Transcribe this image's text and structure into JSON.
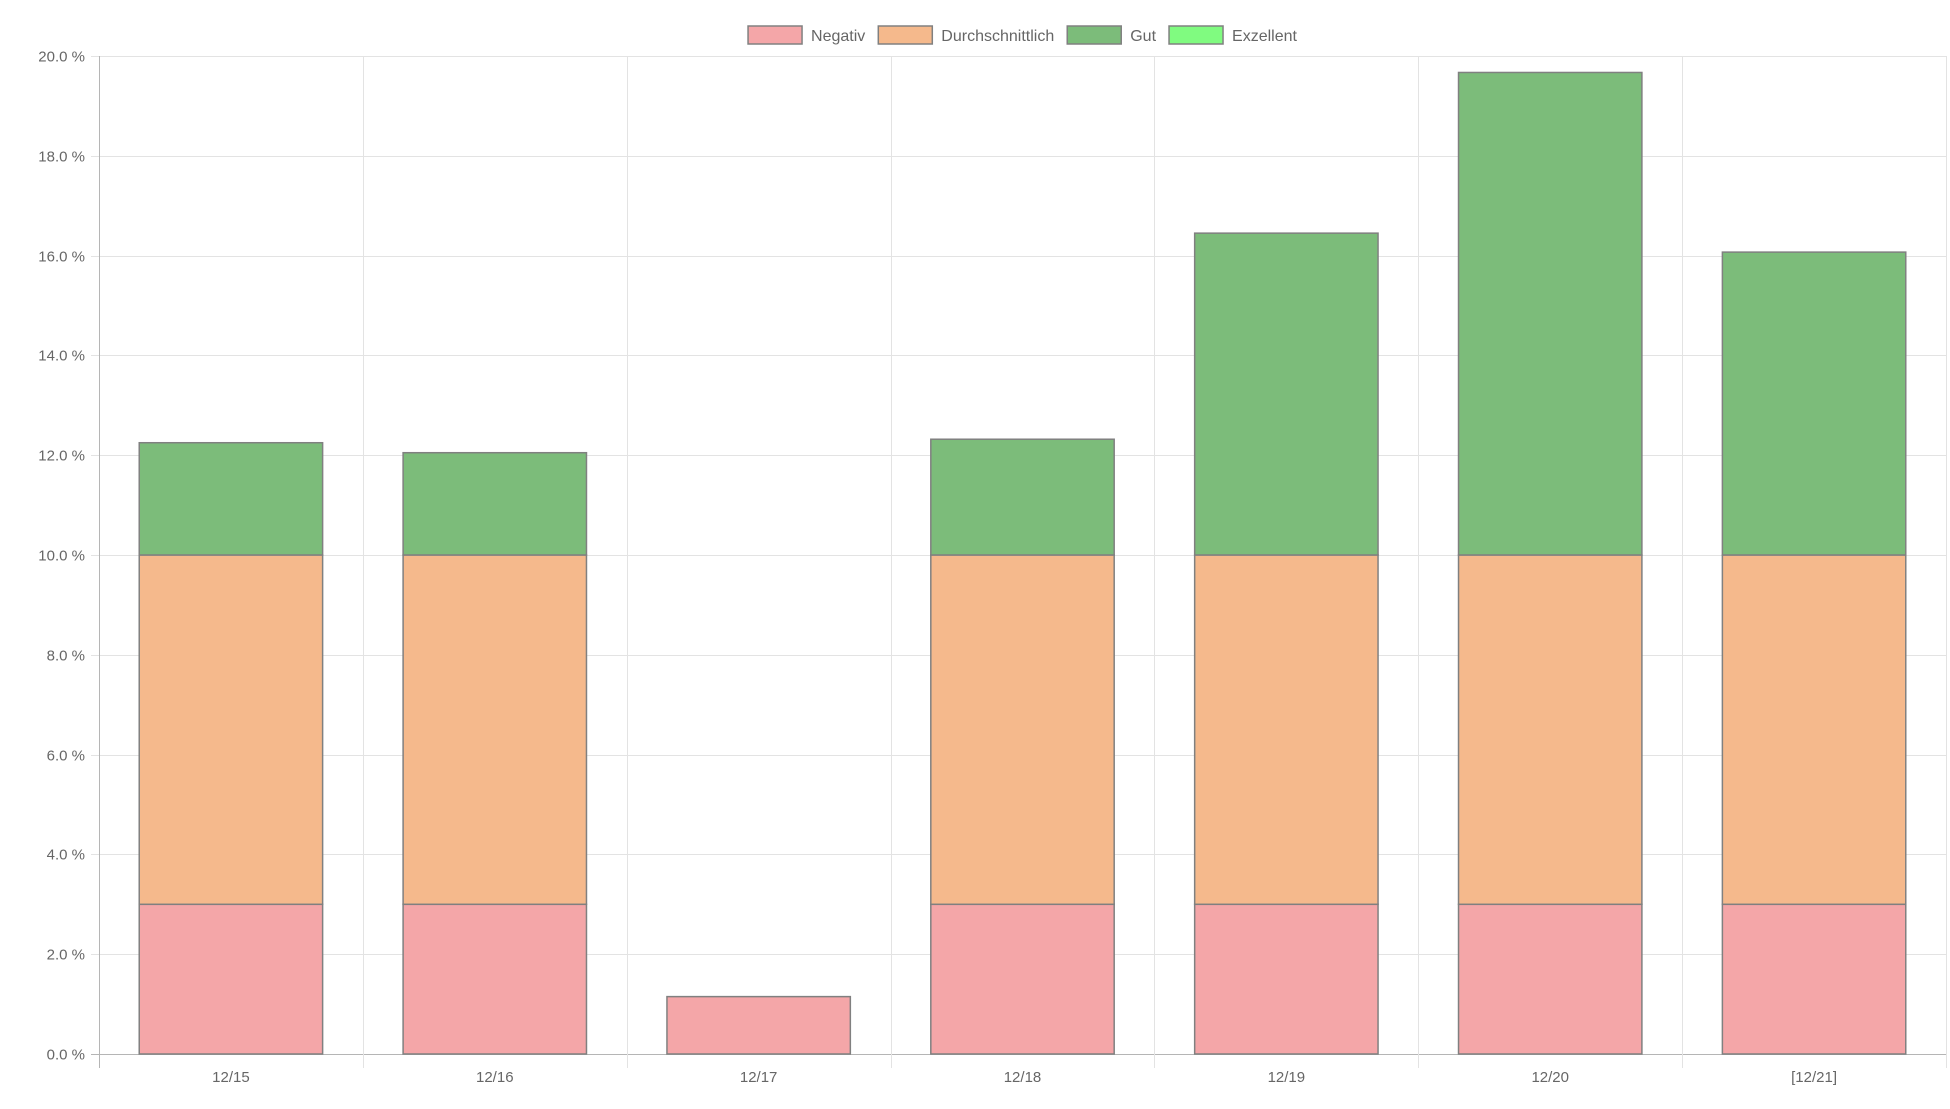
{
  "chart_data": {
    "type": "bar",
    "stacked": true,
    "categories": [
      "12/15",
      "12/16",
      "12/17",
      "12/18",
      "12/19",
      "12/20",
      "[12/21]"
    ],
    "series": [
      {
        "name": "Negativ",
        "color": "#f4a6a8",
        "values": [
          3.0,
          3.0,
          1.15,
          3.0,
          3.0,
          3.0,
          3.0
        ]
      },
      {
        "name": "Durchschnittlich",
        "color": "#f5b98c",
        "values": [
          7.0,
          7.0,
          0,
          7.0,
          7.0,
          7.0,
          7.0
        ]
      },
      {
        "name": "Gut",
        "color": "#7cbc7a",
        "values": [
          2.25,
          2.05,
          0,
          2.32,
          6.45,
          9.67,
          6.07
        ]
      },
      {
        "name": "Exzellent",
        "color": "#80fb80",
        "values": [
          0,
          0,
          0,
          0,
          0,
          0,
          0
        ]
      }
    ],
    "ylim": [
      0,
      20
    ],
    "ytick_step": 2,
    "ytick_suffix": " %",
    "ytick_decimals": 1,
    "grid": true,
    "legend": "top-center",
    "bar_border_color": "#808080",
    "grid_color": "#e3e3e3",
    "axis_color": "#b5b5b5"
  }
}
